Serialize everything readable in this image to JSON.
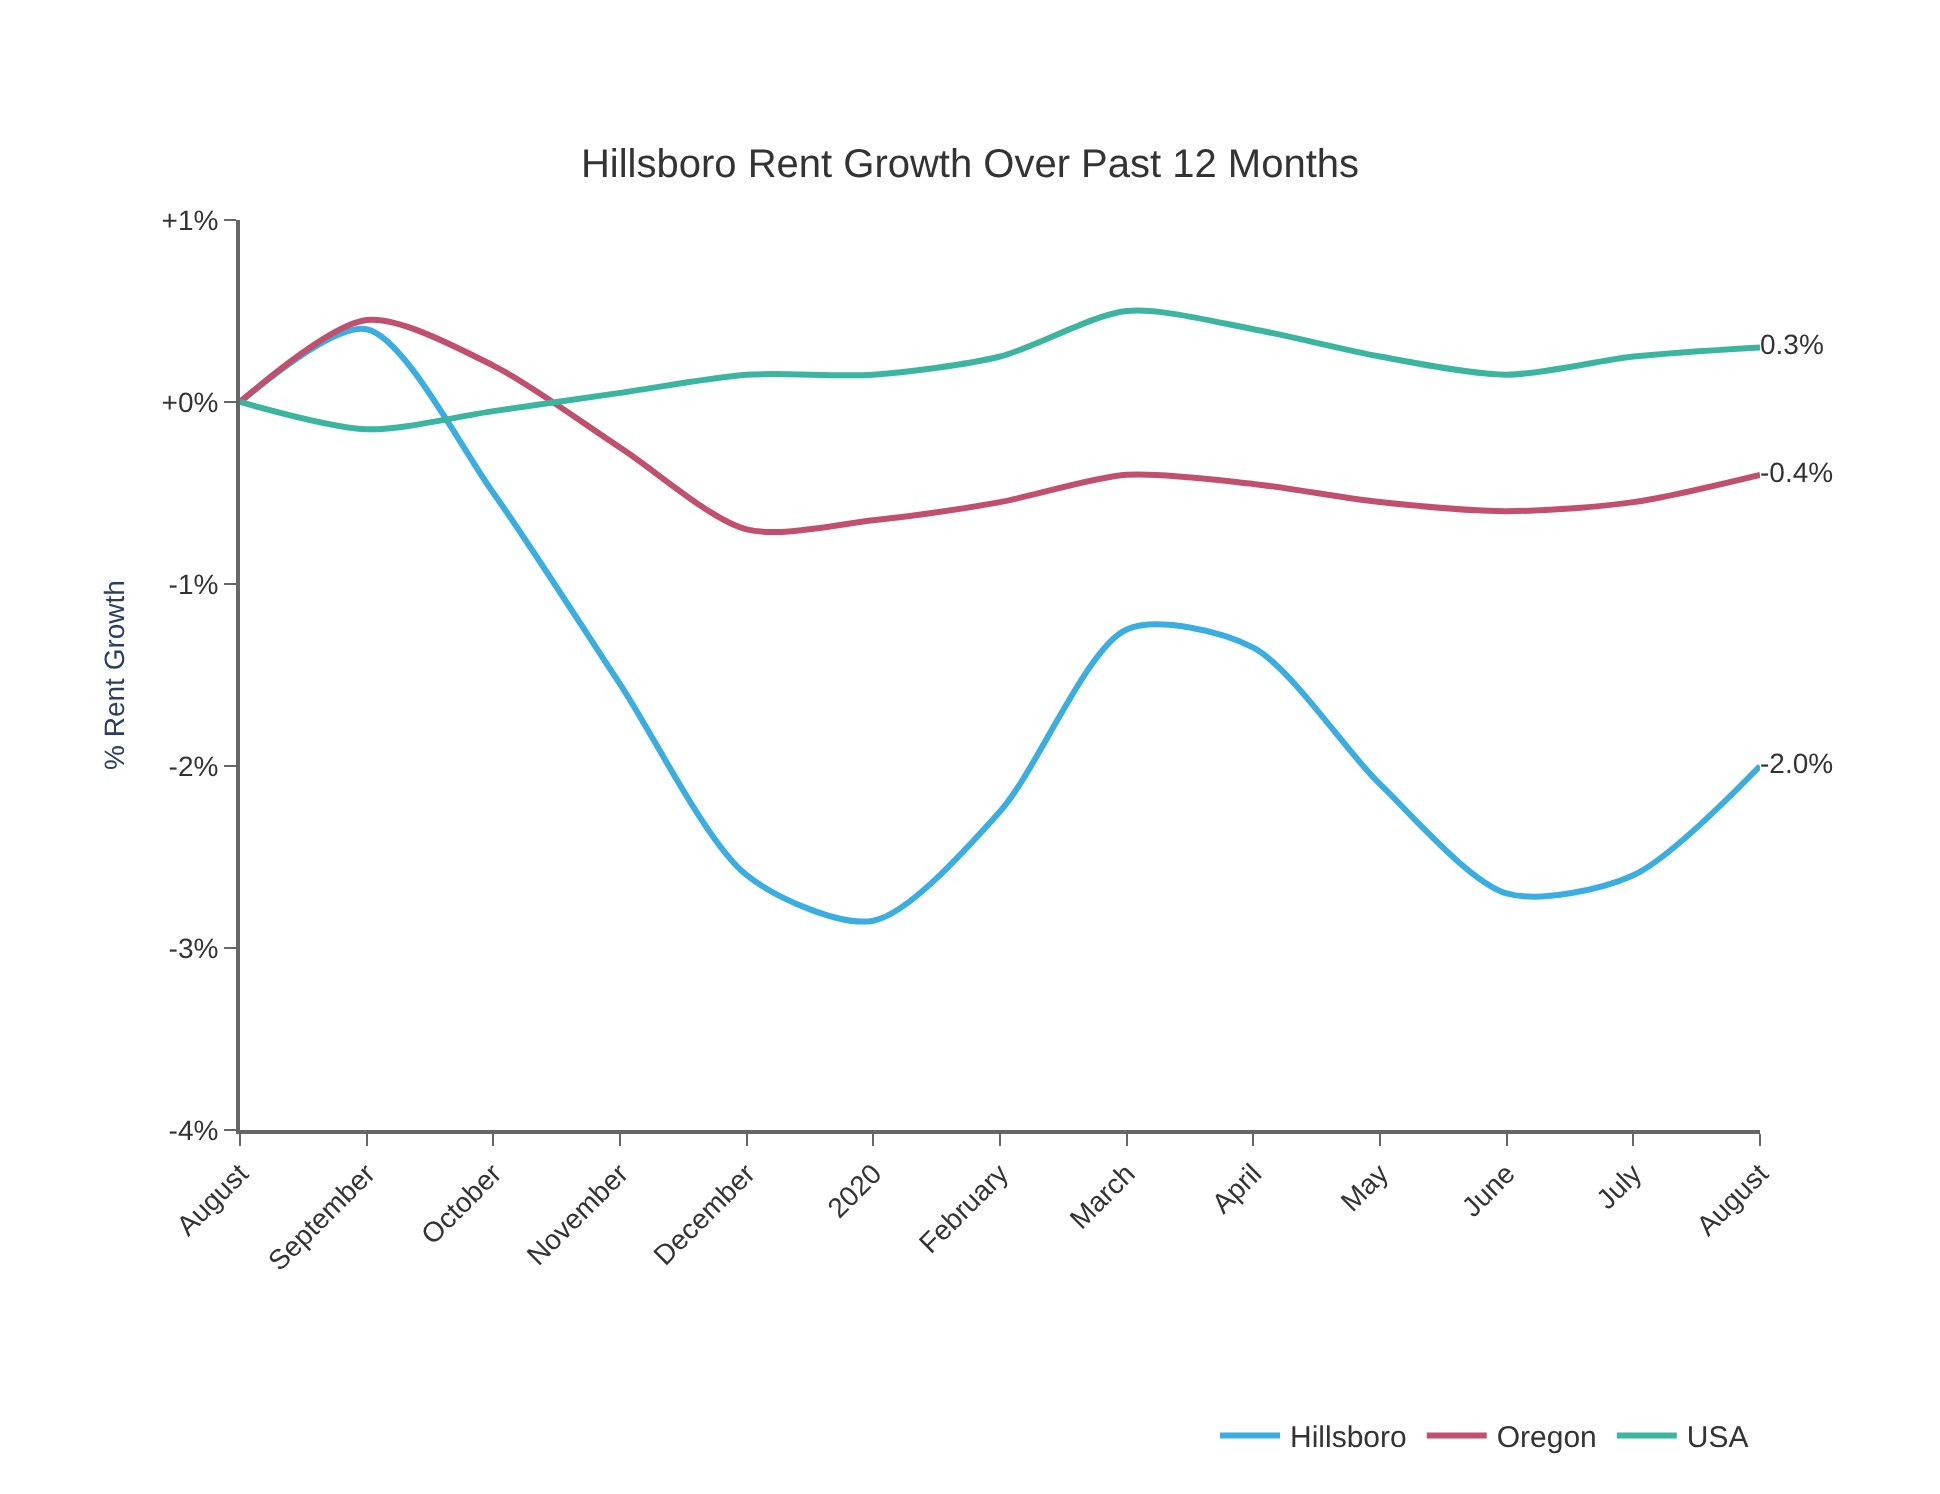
{
  "chart_data": {
    "type": "line",
    "title": "Hillsboro Rent Growth Over Past 12 Months",
    "ylabel": "% Rent Growth",
    "categories": [
      "August",
      "September",
      "October",
      "November",
      "December",
      "2020",
      "February",
      "March",
      "April",
      "May",
      "June",
      "July",
      "August"
    ],
    "series": [
      {
        "name": "Hillsboro",
        "color": "#3aaee0",
        "values": [
          0,
          0.4,
          -0.5,
          -1.55,
          -2.6,
          -2.85,
          -2.25,
          -1.25,
          -1.35,
          -2.1,
          -2.7,
          -2.6,
          -2.0
        ],
        "value_labels": [
          null,
          null,
          null,
          null,
          null,
          null,
          null,
          null,
          null,
          null,
          null,
          null,
          "-2.0%"
        ]
      },
      {
        "name": "Oregon",
        "color": "#c0506e",
        "values": [
          0,
          0.45,
          0.2,
          -0.25,
          -0.7,
          -0.65,
          -0.55,
          -0.4,
          -0.45,
          -0.55,
          -0.6,
          -0.55,
          -0.4
        ],
        "value_labels": [
          null,
          null,
          null,
          null,
          null,
          null,
          null,
          null,
          null,
          null,
          null,
          null,
          "-0.4%"
        ]
      },
      {
        "name": "USA",
        "color": "#3cb5a0",
        "values": [
          0,
          -0.15,
          -0.05,
          0.05,
          0.15,
          0.15,
          0.25,
          0.5,
          0.4,
          0.25,
          0.15,
          0.25,
          0.3
        ],
        "value_labels": [
          null,
          null,
          null,
          null,
          null,
          null,
          null,
          null,
          null,
          null,
          null,
          null,
          "0.3%"
        ]
      }
    ],
    "ylim": [
      -4,
      1
    ],
    "yticks": [
      {
        "value": 1,
        "label": "+1%"
      },
      {
        "value": 0,
        "label": "+0%"
      },
      {
        "value": -1,
        "label": "-1%"
      },
      {
        "value": -2,
        "label": "-2%"
      },
      {
        "value": -3,
        "label": "-3%"
      },
      {
        "value": -4,
        "label": "-4%"
      }
    ],
    "legend": "bottom right",
    "line_style": "solid"
  }
}
